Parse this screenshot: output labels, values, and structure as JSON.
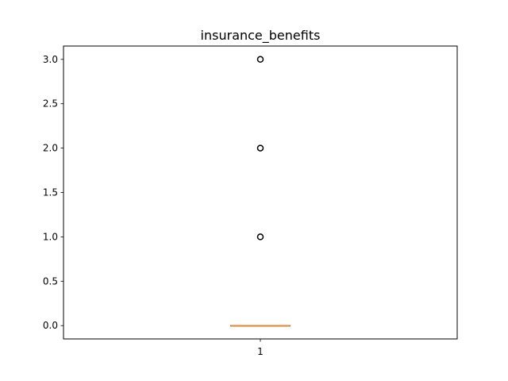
{
  "chart_data": {
    "type": "box",
    "title": "insurance_benefits",
    "xlabel": "",
    "ylabel": "",
    "categories": [
      "1"
    ],
    "ylim": [
      -0.15,
      3.15
    ],
    "yticks": [
      0.0,
      0.5,
      1.0,
      1.5,
      2.0,
      2.5,
      3.0
    ],
    "ytick_labels": [
      "0.0",
      "0.5",
      "1.0",
      "1.5",
      "2.0",
      "2.5",
      "3.0"
    ],
    "grid": false,
    "boxes": [
      {
        "category": "1",
        "q1": 0,
        "median": 0,
        "q3": 0,
        "whisker_low": 0,
        "whisker_high": 0,
        "outliers": [
          1,
          2,
          3
        ]
      }
    ],
    "colors": {
      "box": "#000000",
      "median": "#ff7f0e",
      "outlier": "#000000",
      "axes": "#000000"
    }
  }
}
